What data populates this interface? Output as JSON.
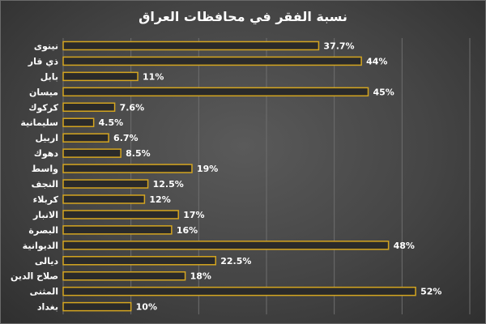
{
  "chart_data": {
    "type": "bar",
    "orientation": "horizontal",
    "title": "نسبة الفقر في محافظات العراق",
    "categories": [
      "نينوى",
      "ذي قار",
      "بابل",
      "ميسان",
      "كركوك",
      "سليمانية",
      "اربيل",
      "دهوك",
      "واسط",
      "النجف",
      "كربلاء",
      "الانبار",
      "البصرة",
      "الديوانية",
      "ديالى",
      "صلاح الدين",
      "المثنى",
      "بغداد"
    ],
    "values": [
      37.7,
      44,
      11,
      45,
      7.6,
      4.5,
      6.7,
      8.5,
      19,
      12.5,
      12,
      17,
      16,
      48,
      22.5,
      18,
      52,
      10
    ],
    "data_labels": [
      "37.7%",
      "44%",
      "11%",
      "45%",
      "7.6%",
      "4.5%",
      "6.7%",
      "8.5%",
      "19%",
      "12.5%",
      "12%",
      "17%",
      "16%",
      "48%",
      "22.5%",
      "18%",
      "52%",
      "10%"
    ],
    "xlim": [
      0,
      60
    ],
    "grid": true,
    "legend": "none",
    "colors": {
      "bar_fill": "#2a2a2a",
      "bar_stroke": "#d4a520",
      "text": "#ffffff",
      "gridline": "#6e6e6e"
    }
  }
}
